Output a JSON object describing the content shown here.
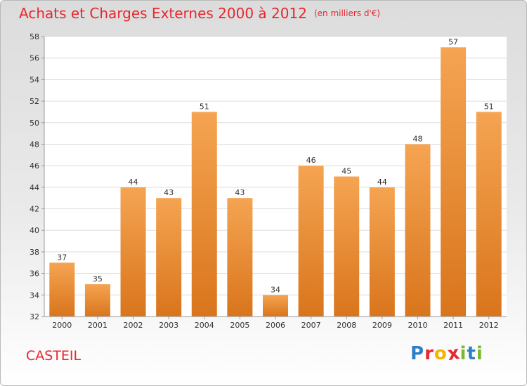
{
  "header": {
    "title": "Achats et Charges Externes 2000 à 2012",
    "unit": "(en milliers d'€)"
  },
  "footer": {
    "location": "CASTEIL",
    "logo_letters": [
      {
        "char": "P",
        "color": "#2f7fc8"
      },
      {
        "char": "r",
        "color": "#e8262e"
      },
      {
        "char": "o",
        "color": "#f4b400"
      },
      {
        "char": "x",
        "color": "#e8262e"
      },
      {
        "char": "i",
        "color": "#7cb82f"
      },
      {
        "char": "t",
        "color": "#2f7fc8"
      },
      {
        "char": "i",
        "color": "#7cb82f"
      }
    ]
  },
  "chart_data": {
    "type": "bar",
    "title": "Achats et Charges Externes 2000 à 2012",
    "categories": [
      "2000",
      "2001",
      "2002",
      "2003",
      "2004",
      "2005",
      "2006",
      "2007",
      "2008",
      "2009",
      "2010",
      "2011",
      "2012"
    ],
    "values": [
      37,
      35,
      44,
      43,
      51,
      43,
      34,
      46,
      45,
      44,
      48,
      57,
      51
    ],
    "ylim": [
      32,
      58
    ],
    "yticks": [
      32,
      34,
      36,
      38,
      40,
      42,
      44,
      46,
      48,
      50,
      52,
      54,
      56,
      58
    ],
    "grid": true,
    "bar_color_top": "#f5a452",
    "bar_color_bottom": "#d9751c"
  }
}
